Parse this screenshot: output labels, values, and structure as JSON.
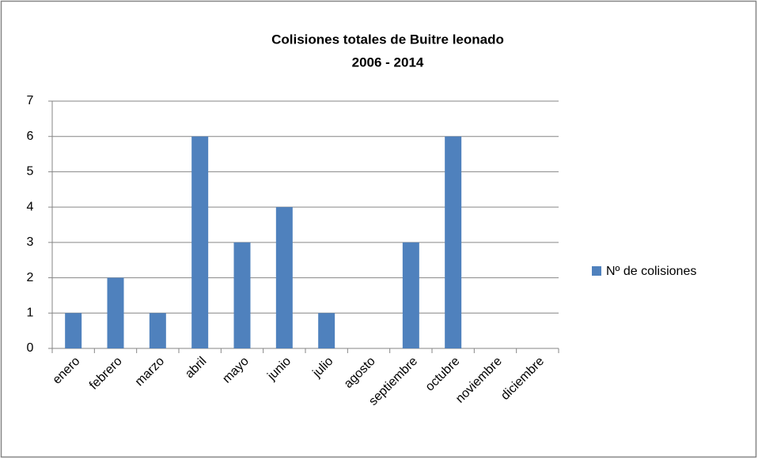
{
  "chart_data": {
    "type": "bar",
    "title": "Colisiones totales de Buitre leonado",
    "subtitle": "2006 - 2014",
    "categories": [
      "enero",
      "febrero",
      "marzo",
      "abril",
      "mayo",
      "junio",
      "julio",
      "agosto",
      "septiembre",
      "octubre",
      "noviembre",
      "diciembre"
    ],
    "series": [
      {
        "name": "Nº de colisiones",
        "color": "#4f81bd",
        "values": [
          1,
          2,
          1,
          6,
          3,
          4,
          1,
          0,
          3,
          6,
          0,
          0
        ]
      }
    ],
    "ylim": [
      0,
      7
    ],
    "yticks": [
      0,
      1,
      2,
      3,
      4,
      5,
      6,
      7
    ],
    "grid": true,
    "legend": "right"
  }
}
